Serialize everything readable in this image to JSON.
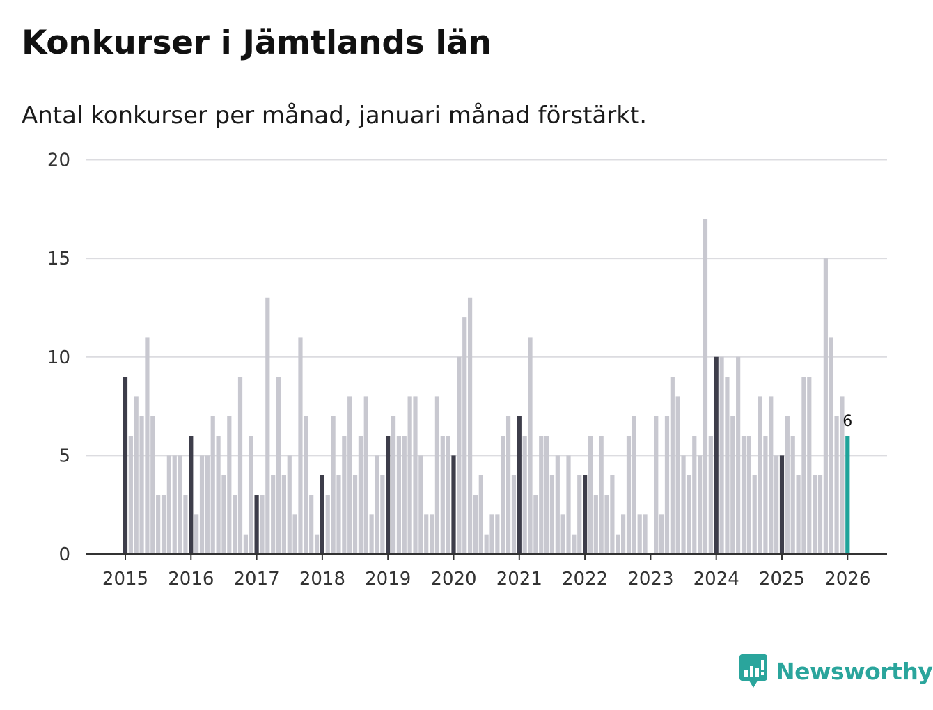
{
  "title": "Konkurser i Jämtlands län",
  "subtitle": "Antal konkurser per månad, januari månad förstärkt.",
  "brand": "Newsworthy",
  "colors": {
    "bar": "#c8c8d0",
    "january": "#3d3d4a",
    "latest": "#1fa39a",
    "grid": "#dcdce0",
    "axis": "#333333",
    "brand": "#2aa59c"
  },
  "chart_data": {
    "type": "bar",
    "title": "Konkurser i Jämtlands län",
    "subtitle": "Antal konkurser per månad, januari månad förstärkt.",
    "xlabel": "",
    "ylabel": "",
    "ylim": [
      0,
      20
    ],
    "yticks": [
      0,
      5,
      10,
      15,
      20
    ],
    "ytick_labels": [
      "0",
      "5",
      "10",
      "15",
      "20"
    ],
    "xtick_labels": [
      "2015",
      "2016",
      "2017",
      "2018",
      "2019",
      "2020",
      "2021",
      "2022",
      "2023",
      "2024",
      "2025",
      "2026"
    ],
    "start": "2015-01",
    "highlight": "January of each year drawn darker; latest month (2026-01) highlighted",
    "latest_label": "6",
    "values": [
      9,
      6,
      8,
      7,
      11,
      7,
      3,
      3,
      5,
      5,
      5,
      3,
      6,
      2,
      5,
      5,
      7,
      6,
      4,
      7,
      3,
      9,
      1,
      6,
      3,
      3,
      13,
      4,
      9,
      4,
      5,
      2,
      11,
      7,
      3,
      1,
      4,
      3,
      7,
      4,
      6,
      8,
      4,
      6,
      8,
      2,
      5,
      4,
      6,
      7,
      6,
      6,
      8,
      8,
      5,
      2,
      2,
      8,
      6,
      6,
      5,
      10,
      12,
      13,
      3,
      4,
      1,
      2,
      2,
      6,
      7,
      4,
      7,
      6,
      11,
      3,
      6,
      6,
      4,
      5,
      2,
      5,
      1,
      4,
      4,
      6,
      3,
      6,
      3,
      4,
      1,
      2,
      6,
      7,
      2,
      2,
      0,
      7,
      2,
      7,
      9,
      8,
      5,
      4,
      6,
      5,
      17,
      6,
      10,
      10,
      9,
      7,
      10,
      6,
      6,
      4,
      8,
      6,
      8,
      5,
      5,
      7,
      6,
      4,
      9,
      9,
      4,
      4,
      15,
      11,
      7,
      8,
      6
    ]
  }
}
